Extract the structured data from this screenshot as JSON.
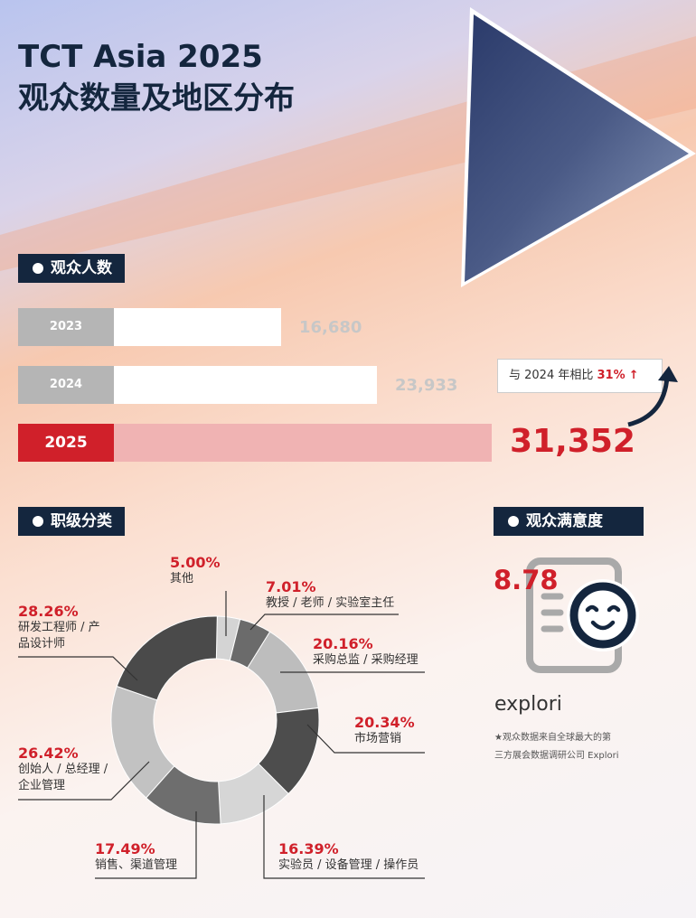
{
  "title": {
    "line1": "TCT Asia 2025",
    "line2": "观众数量及地区分布"
  },
  "sections": {
    "visitors": "观众人数",
    "job_level": "职级分类",
    "satisfaction": "观众满意度"
  },
  "visitors": [
    {
      "year": "2023",
      "value": "16,680",
      "count": 16680
    },
    {
      "year": "2024",
      "value": "23,933",
      "count": 23933
    },
    {
      "year": "2025",
      "value": "31,352",
      "count": 31352
    }
  ],
  "comparison": {
    "text": "与 2024 年相比",
    "pct": "31%",
    "arrow": "↑"
  },
  "satisfaction": {
    "score": "8.78",
    "icon": "smiley-document-icon",
    "logo": "explori",
    "note1": "★观众数据来自全球最大的第",
    "note2": "三方展会数据调研公司 Explori"
  },
  "colors": {
    "accent": "#d0202a",
    "navy": "#14263e"
  },
  "chart_data": {
    "type": "pie",
    "donut": true,
    "slices": [
      {
        "label": "其他",
        "value": 5.0,
        "text": "5.00%",
        "color": "#d4d4d4"
      },
      {
        "label": "教授 / 老师 / 实验室主任",
        "value": 7.01,
        "text": "7.01%",
        "color": "#6b6b6b"
      },
      {
        "label": "采购总监 / 采购经理",
        "value": 20.16,
        "text": "20.16%",
        "color": "#bdbdbd"
      },
      {
        "label": "市场营销",
        "value": 20.34,
        "text": "20.34%",
        "color": "#4d4d4d"
      },
      {
        "label": "实验员 / 设备管理 / 操作员",
        "value": 16.39,
        "text": "16.39%",
        "color": "#d6d6d6"
      },
      {
        "label": "销售、渠道管理",
        "value": 17.49,
        "text": "17.49%",
        "color": "#6e6e6e"
      },
      {
        "label": "创始人 / 总经理 / 企业管理",
        "value": 26.42,
        "text": "26.42%",
        "color": "#c2c2c2"
      },
      {
        "label": "研发工程师 / 产品设计师",
        "value": 28.26,
        "text": "28.26%",
        "color": "#4a4a4a"
      }
    ]
  }
}
